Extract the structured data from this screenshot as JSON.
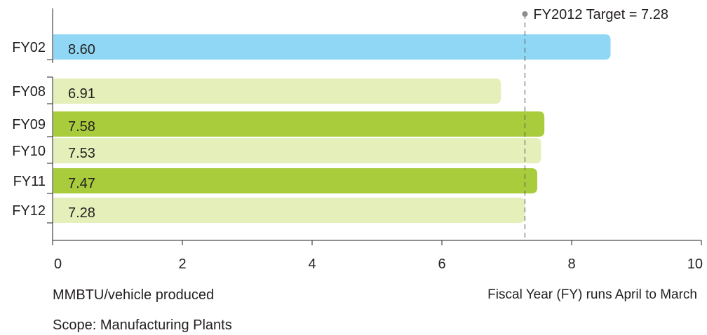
{
  "chart_data": {
    "type": "bar",
    "orientation": "horizontal",
    "categories": [
      "FY02",
      "FY08",
      "FY09",
      "FY10",
      "FY11",
      "FY12"
    ],
    "values": [
      8.6,
      6.91,
      7.58,
      7.53,
      7.47,
      7.28
    ],
    "value_labels": [
      "8.60",
      "6.91",
      "7.58",
      "7.53",
      "7.47",
      "7.28"
    ],
    "bar_colors": [
      "#8fd7f4",
      "#e4efb9",
      "#a8cc3c",
      "#e4efb9",
      "#a8cc3c",
      "#e4efb9"
    ],
    "xlim": [
      0,
      10
    ],
    "xticks": [
      "0",
      "2",
      "4",
      "6",
      "8",
      "10"
    ],
    "axis_break": "between FY02 and FY08",
    "grid": false,
    "target": {
      "value": 7.28,
      "label": "FY2012 Target = 7.28",
      "style": "dashed vertical line"
    },
    "title": "",
    "xlabel": "",
    "ylabel": ""
  },
  "notes": {
    "unit": "MMBTU/vehicle produced",
    "scope": "Scope: Manufacturing Plants",
    "fiscal_year": "Fiscal Year (FY) runs April to March"
  }
}
